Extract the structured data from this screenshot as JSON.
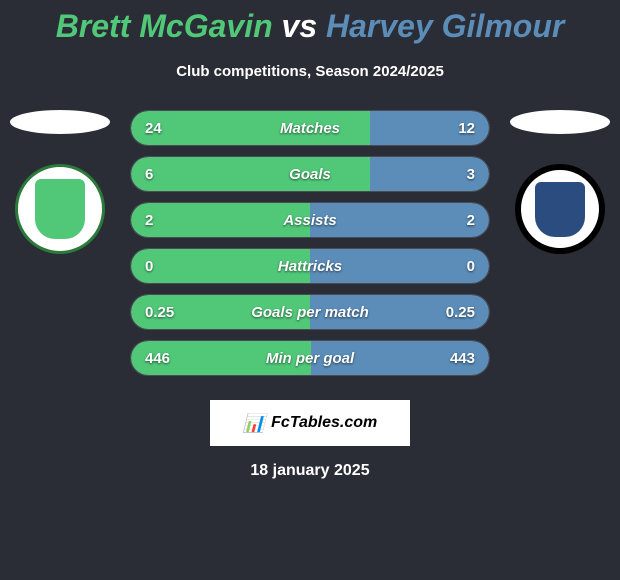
{
  "title": {
    "player1": "Brett McGavin",
    "vs": "vs",
    "player2": "Harvey Gilmour"
  },
  "subtitle": "Club competitions, Season 2024/2025",
  "colors": {
    "player1": "#50c878",
    "player2": "#5b8db8",
    "background": "#2a2d35"
  },
  "stats": [
    {
      "label": "Matches",
      "val1": "24",
      "val2": "12",
      "pct1": 66.7,
      "pct2": 33.3
    },
    {
      "label": "Goals",
      "val1": "6",
      "val2": "3",
      "pct1": 66.7,
      "pct2": 33.3
    },
    {
      "label": "Assists",
      "val1": "2",
      "val2": "2",
      "pct1": 50,
      "pct2": 50
    },
    {
      "label": "Hattricks",
      "val1": "0",
      "val2": "0",
      "pct1": 50,
      "pct2": 50
    },
    {
      "label": "Goals per match",
      "val1": "0.25",
      "val2": "0.25",
      "pct1": 50,
      "pct2": 50
    },
    {
      "label": "Min per goal",
      "val1": "446",
      "val2": "443",
      "pct1": 50.2,
      "pct2": 49.8
    }
  ],
  "branding": "FcTables.com",
  "date": "18 january 2025"
}
